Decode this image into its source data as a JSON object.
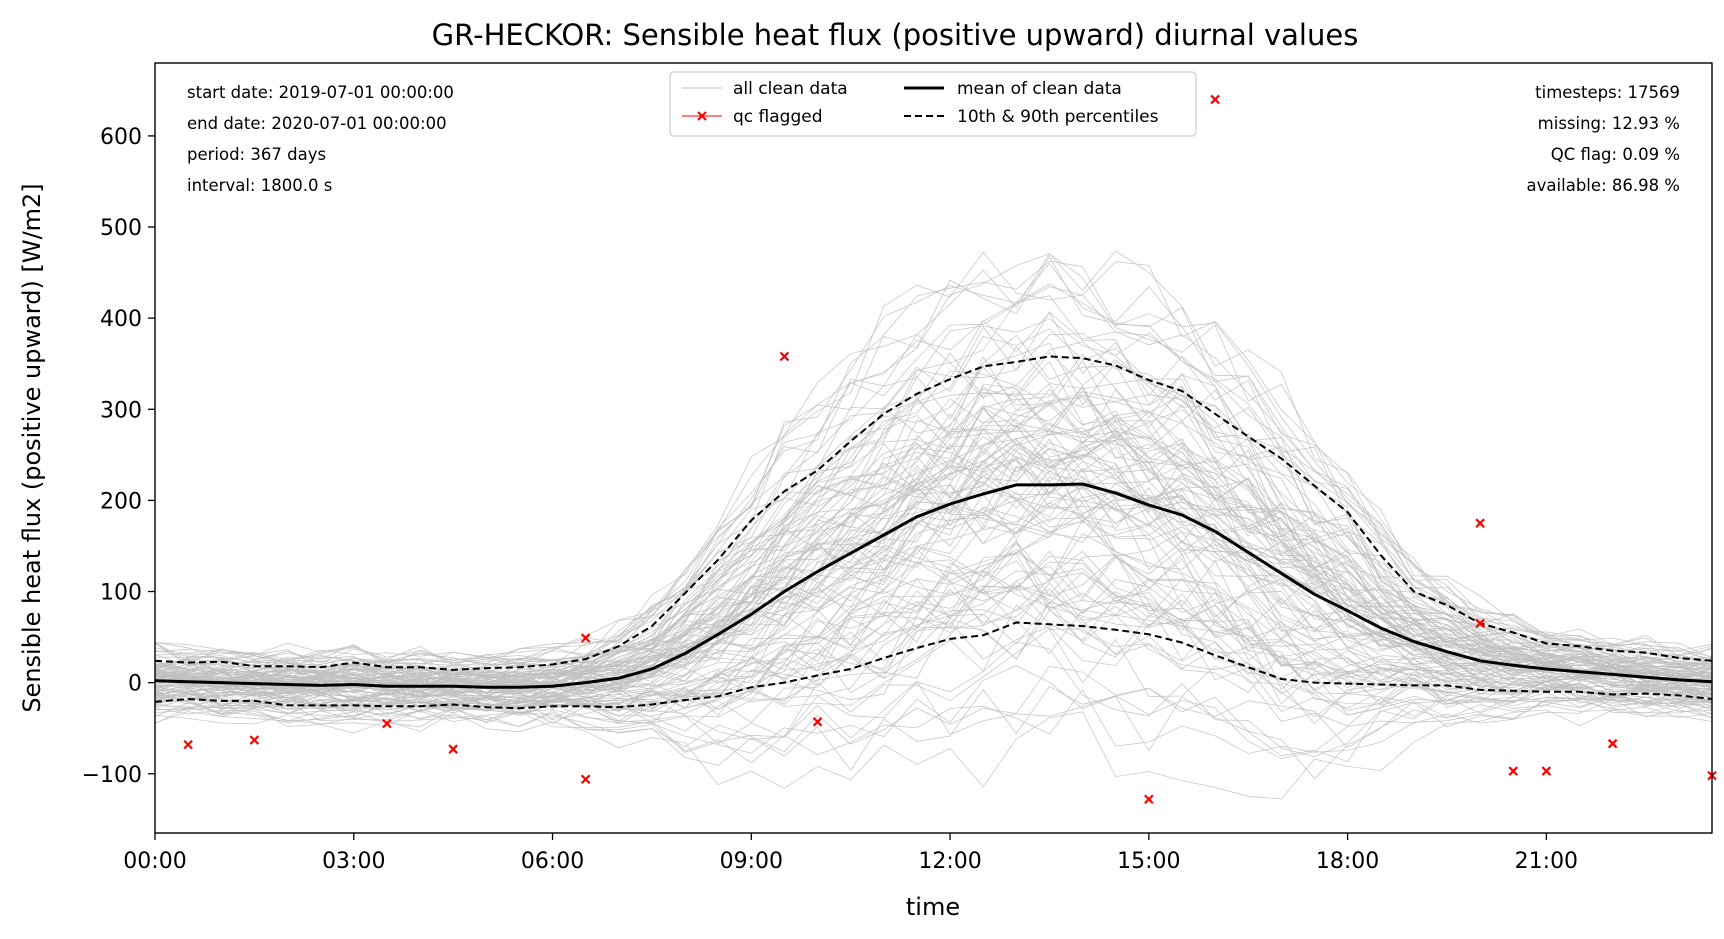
{
  "chart_data": {
    "type": "line",
    "title": "GR-HECKOR: Sensible heat flux (positive upward) diurnal values",
    "xlabel": "time",
    "ylabel": "Sensible heat flux (positive upward) [W/m2]",
    "xlim": [
      0,
      23.5
    ],
    "ylim": [
      -165,
      680
    ],
    "x_ticks": [
      {
        "value": 0,
        "label": "00:00"
      },
      {
        "value": 3,
        "label": "03:00"
      },
      {
        "value": 6,
        "label": "06:00"
      },
      {
        "value": 9,
        "label": "09:00"
      },
      {
        "value": 12,
        "label": "12:00"
      },
      {
        "value": 15,
        "label": "15:00"
      },
      {
        "value": 18,
        "label": "18:00"
      },
      {
        "value": 21,
        "label": "21:00"
      }
    ],
    "y_ticks": [
      {
        "value": -100,
        "label": "−100"
      },
      {
        "value": 0,
        "label": "0"
      },
      {
        "value": 100,
        "label": "100"
      },
      {
        "value": 200,
        "label": "200"
      },
      {
        "value": 300,
        "label": "300"
      },
      {
        "value": 400,
        "label": "400"
      },
      {
        "value": 500,
        "label": "500"
      },
      {
        "value": 600,
        "label": "600"
      }
    ],
    "x": [
      0,
      0.5,
      1,
      1.5,
      2,
      2.5,
      3,
      3.5,
      4,
      4.5,
      5,
      5.5,
      6,
      6.5,
      7,
      7.5,
      8,
      8.5,
      9,
      9.5,
      10,
      10.5,
      11,
      11.5,
      12,
      12.5,
      13,
      13.5,
      14,
      14.5,
      15,
      15.5,
      16,
      16.5,
      17,
      17.5,
      18,
      18.5,
      19,
      19.5,
      20,
      20.5,
      21,
      21.5,
      22,
      22.5,
      23,
      23.5
    ],
    "series": [
      {
        "name": "mean of clean data",
        "style": "solid",
        "color": "#000000",
        "values": [
          2,
          1,
          0,
          -1,
          -2,
          -3,
          -2,
          -4,
          -4,
          -4,
          -5,
          -5,
          -4,
          0,
          5,
          15,
          32,
          53,
          75,
          100,
          122,
          142,
          162,
          182,
          196,
          207,
          217,
          217,
          218,
          208,
          195,
          184,
          166,
          143,
          120,
          97,
          79,
          60,
          45,
          34,
          24,
          19,
          15,
          12,
          9,
          6,
          3,
          1
        ]
      },
      {
        "name": "10th & 90th percentiles",
        "style": "dashed",
        "color": "#000000",
        "values": [
          24,
          22,
          23,
          18,
          18,
          17,
          22,
          17,
          17,
          14,
          16,
          17,
          20,
          26,
          40,
          62,
          98,
          135,
          178,
          210,
          233,
          265,
          295,
          317,
          333,
          347,
          352,
          358,
          356,
          348,
          332,
          320,
          295,
          270,
          246,
          216,
          187,
          140,
          100,
          85,
          65,
          55,
          43,
          40,
          35,
          33,
          27,
          24
        ]
      },
      {
        "name": "10th percentile",
        "style": "dashed",
        "color": "#000000",
        "values": [
          -21,
          -18,
          -20,
          -20,
          -25,
          -25,
          -25,
          -26,
          -26,
          -24,
          -27,
          -28,
          -26,
          -26,
          -27,
          -24,
          -19,
          -15,
          -5,
          0,
          8,
          15,
          27,
          38,
          48,
          52,
          66,
          64,
          62,
          58,
          53,
          44,
          30,
          17,
          4,
          0,
          -1,
          -2,
          -3,
          -3,
          -8,
          -9,
          -10,
          -10,
          -13,
          -12,
          -14,
          -18
        ]
      }
    ],
    "qc_flagged": {
      "x": [
        0.5,
        1.5,
        3.5,
        4.5,
        6.5,
        6.5,
        9.5,
        10,
        15,
        16,
        20,
        20,
        20.5,
        21,
        22,
        23.5
      ],
      "y": [
        -68,
        -63,
        -45,
        -73,
        -106,
        49,
        358,
        -43,
        -128,
        640,
        175,
        65,
        -97,
        -97,
        -67,
        -102
      ],
      "color": "#ff0000"
    },
    "background_color": "#c0c0c0",
    "legend": {
      "placement": "top-center",
      "items": [
        {
          "label": "all clean data",
          "style": "thin-gray"
        },
        {
          "label": "mean of clean data",
          "style": "solid-black"
        },
        {
          "label": "qc flagged",
          "style": "red-x"
        },
        {
          "label": "10th & 90th percentiles",
          "style": "dashed-black"
        }
      ]
    },
    "stats_left": [
      "start date: 2019-07-01 00:00:00",
      "end date: 2020-07-01 00:00:00",
      "period: 367 days",
      "interval: 1800.0 s"
    ],
    "stats_right": [
      "timesteps: 17569",
      "missing: 12.93 %",
      "QC flag: 0.09 %",
      "available: 86.98 %"
    ]
  }
}
